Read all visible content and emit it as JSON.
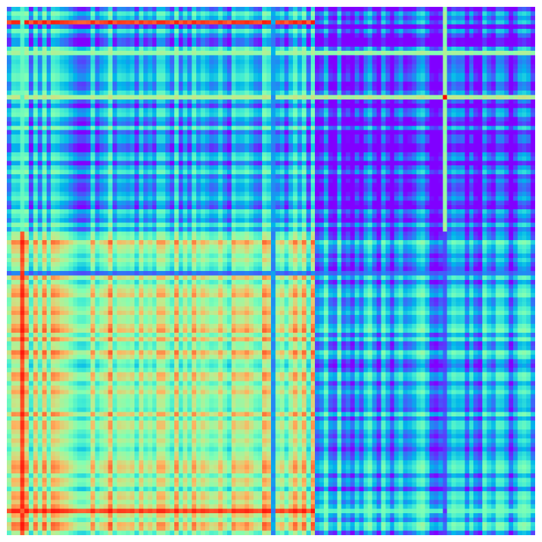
{
  "chart_data": {
    "type": "heatmap",
    "title": "",
    "xlabel": "",
    "ylabel": "",
    "n_rows": 120,
    "n_cols": 120,
    "colormap": "rainbow",
    "colorscale": [
      "#8000ff",
      "#4062fa",
      "#00b5eb",
      "#40ecd4",
      "#80ffb4",
      "#c0eb8d",
      "#ffb360",
      "#ff6230",
      "#ff0000"
    ],
    "value_range": [
      0,
      1
    ],
    "axes_visible": false,
    "grid": false,
    "legend": "none",
    "blocks": [
      {
        "rows": [
          0,
          50
        ],
        "cols": [
          0,
          69
        ],
        "mean_value": 0.26
      },
      {
        "rows": [
          0,
          50
        ],
        "cols": [
          70,
          119
        ],
        "mean_value": 0.08
      },
      {
        "rows": [
          51,
          119
        ],
        "cols": [
          0,
          69
        ],
        "mean_value": 0.58
      },
      {
        "rows": [
          51,
          119
        ],
        "cols": [
          70,
          119
        ],
        "mean_value": 0.25
      }
    ],
    "highlight_rows": [
      {
        "index": 3,
        "value": 0.92,
        "span": "left"
      },
      {
        "index": 10,
        "value": 0.55,
        "span": "all"
      },
      {
        "index": 20,
        "value": 0.6,
        "span": "all"
      },
      {
        "index": 60,
        "value": 0.15,
        "span": "all"
      },
      {
        "index": 114,
        "value": 0.92,
        "span": "left"
      },
      {
        "index": 114,
        "value": 0.45,
        "span": "right"
      }
    ],
    "highlight_cols": [
      {
        "index": 3,
        "value": 0.92,
        "span": "lower"
      },
      {
        "index": 3,
        "value": 0.45,
        "span": "upper"
      },
      {
        "index": 60,
        "value": 0.2,
        "span": "all"
      },
      {
        "index": 99,
        "value": 0.55,
        "span": "upper"
      },
      {
        "index": 99,
        "value": 0.1,
        "span": "lower"
      }
    ],
    "highlight_cells": [
      {
        "row": 20,
        "col": 99,
        "value": 1.0
      }
    ]
  }
}
